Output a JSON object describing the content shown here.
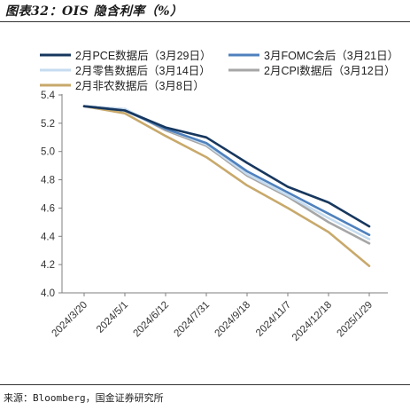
{
  "figure": {
    "title": "图表32：OIS 隐含利率（%）",
    "source": "来源：Bloomberg，国金证券研究所"
  },
  "chart_data": {
    "type": "line",
    "x": [
      "2024/3/20",
      "2024/5/1",
      "2024/6/12",
      "2024/7/31",
      "2024/9/18",
      "2024/11/7",
      "2024/12/18",
      "2025/1/29"
    ],
    "ylim": [
      4.0,
      5.4
    ],
    "yticks": [
      4.0,
      4.2,
      4.4,
      4.6,
      4.8,
      5.0,
      5.2,
      5.4
    ],
    "ytick_labels": [
      "4.0",
      "4.2",
      "4.4",
      "4.6",
      "4.8",
      "5.0",
      "5.2",
      "5.4"
    ],
    "legend_placement": "top",
    "grid": false,
    "series": [
      {
        "name": "2月PCE数据后（3月29日）",
        "color": "#17375e",
        "values": [
          5.32,
          5.29,
          5.17,
          5.1,
          4.92,
          4.75,
          4.64,
          4.47
        ]
      },
      {
        "name": "3月FOMC会后（3月21日）",
        "color": "#4f81bd",
        "values": [
          5.32,
          5.29,
          5.16,
          5.06,
          4.86,
          4.71,
          4.56,
          4.41
        ]
      },
      {
        "name": "2月零售数据后（3月14日）",
        "color": "#c6dcf0",
        "values": [
          5.32,
          5.3,
          5.16,
          5.05,
          4.84,
          4.69,
          4.53,
          4.38
        ]
      },
      {
        "name": "2月CPI数据后（3月12日）",
        "color": "#a6a6a6",
        "values": [
          5.32,
          5.3,
          5.15,
          5.04,
          4.83,
          4.68,
          4.5,
          4.35
        ]
      },
      {
        "name": "2月非农数据后（3月8日）",
        "color": "#c8a96b",
        "values": [
          5.32,
          5.27,
          5.11,
          4.96,
          4.76,
          4.6,
          4.43,
          4.19
        ]
      }
    ]
  }
}
